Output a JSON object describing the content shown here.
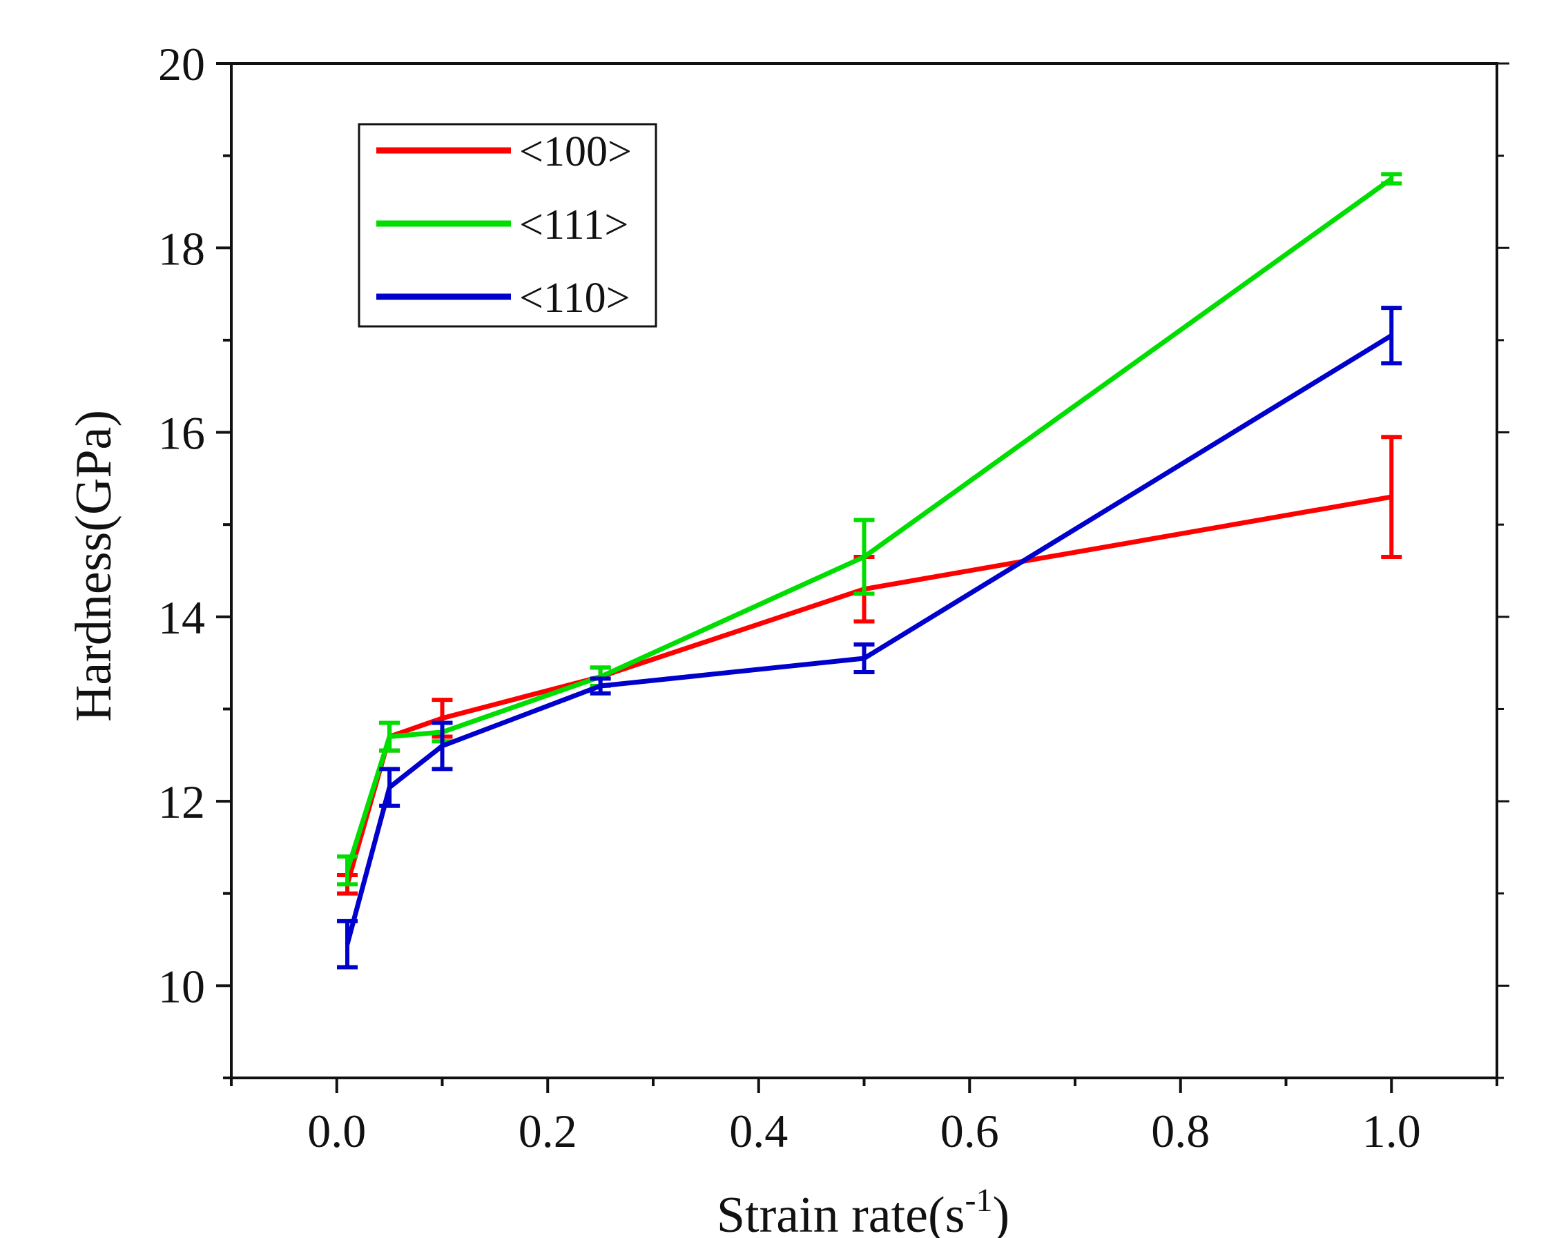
{
  "chart_data": {
    "type": "line",
    "title": "",
    "xlabel": "Strain rate",
    "xlabel_unit": "s",
    "xlabel_unit_exponent": "-1",
    "ylabel": "Hardness(GPa)",
    "xlim": [
      -0.1,
      1.1
    ],
    "ylim": [
      9,
      20
    ],
    "x_ticks": [
      0.0,
      0.2,
      0.4,
      0.6,
      0.8,
      1.0
    ],
    "x_tick_labels": [
      "0.0",
      "0.2",
      "0.4",
      "0.6",
      "0.8",
      "1.0"
    ],
    "y_ticks": [
      10,
      12,
      14,
      16,
      18,
      20
    ],
    "y_tick_labels": [
      "10",
      "12",
      "14",
      "16",
      "18",
      "20"
    ],
    "grid": false,
    "legend_position": "top-left",
    "x": [
      0.01,
      0.05,
      0.1,
      0.25,
      0.5,
      1.0
    ],
    "series": [
      {
        "name": "<100>",
        "color": "#ff0000",
        "values": [
          11.1,
          12.7,
          12.9,
          13.35,
          14.3,
          15.3
        ],
        "errors": [
          0.1,
          0.15,
          0.2,
          0.1,
          0.35,
          0.65
        ]
      },
      {
        "name": "<111>",
        "color": "#00dd00",
        "values": [
          11.25,
          12.7,
          12.75,
          13.35,
          14.65,
          18.75
        ],
        "errors": [
          0.15,
          0.15,
          0.1,
          0.1,
          0.4,
          0.05
        ]
      },
      {
        "name": "<110>",
        "color": "#0000cc",
        "values": [
          10.45,
          12.15,
          12.6,
          13.25,
          13.55,
          17.05
        ],
        "errors": [
          0.25,
          0.2,
          0.25,
          0.08,
          0.15,
          0.3
        ]
      }
    ]
  }
}
